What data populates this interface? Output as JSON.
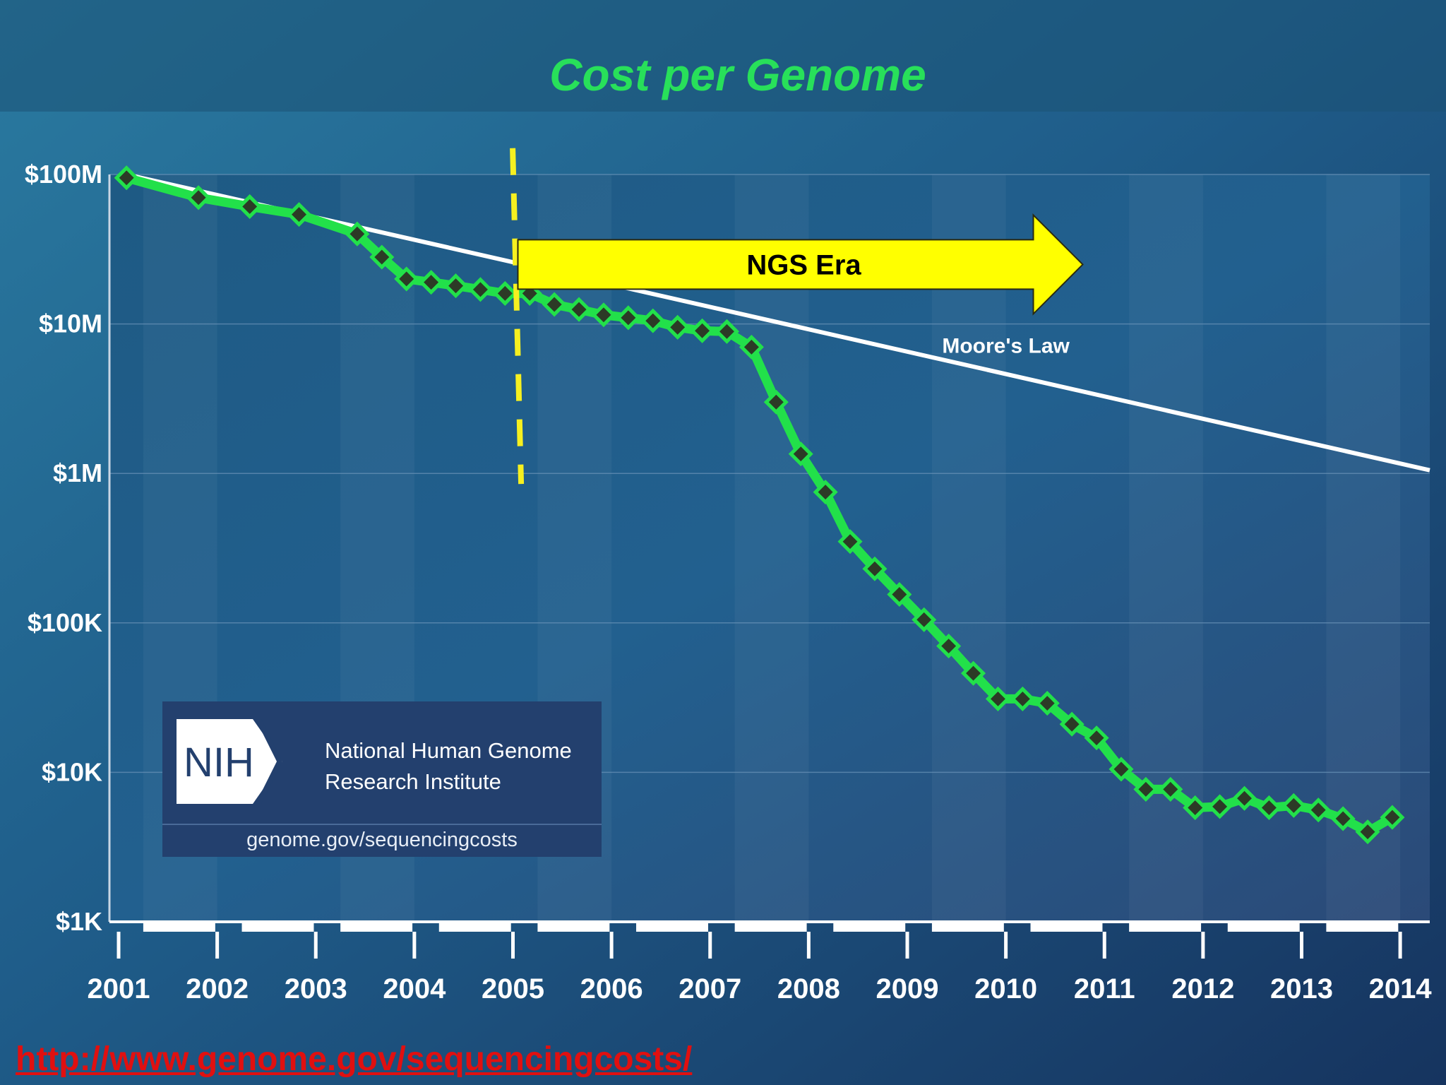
{
  "chart_data": {
    "type": "line",
    "title": "Cost per Genome",
    "y_scale": "log",
    "ylim": [
      1000,
      100000000
    ],
    "y_ticks": [
      {
        "value": 100000000,
        "label": "$100M"
      },
      {
        "value": 10000000,
        "label": "$10M"
      },
      {
        "value": 1000000,
        "label": "$1M"
      },
      {
        "value": 100000,
        "label": "$100K"
      },
      {
        "value": 10000,
        "label": "$10K"
      },
      {
        "value": 1000,
        "label": "$1K"
      }
    ],
    "xlim": [
      2001.0,
      2014.3
    ],
    "x_ticks": [
      2001,
      2002,
      2003,
      2004,
      2005,
      2006,
      2007,
      2008,
      2009,
      2010,
      2011,
      2012,
      2013,
      2014
    ],
    "grid": "horizontal",
    "series": [
      {
        "name": "",
        "color": "#22e04a",
        "marker": "diamond",
        "x": [
          2001.08,
          2001.81,
          2002.33,
          2002.83,
          2003.42,
          2003.67,
          2003.92,
          2004.17,
          2004.42,
          2004.67,
          2004.92,
          2005.17,
          2005.42,
          2005.67,
          2005.92,
          2006.17,
          2006.42,
          2006.67,
          2006.92,
          2007.17,
          2007.42,
          2007.67,
          2007.92,
          2008.17,
          2008.42,
          2008.67,
          2008.92,
          2009.17,
          2009.42,
          2009.67,
          2009.92,
          2010.17,
          2010.42,
          2010.67,
          2010.92,
          2011.17,
          2011.42,
          2011.67,
          2011.92,
          2012.17,
          2012.42,
          2012.67,
          2012.92,
          2013.17,
          2013.42,
          2013.67,
          2013.92
        ],
        "values": [
          95000000,
          70000000,
          61000000,
          54000000,
          40000000,
          28000000,
          20000000,
          19000000,
          18000000,
          17000000,
          16000000,
          16000000,
          13500000,
          12500000,
          11500000,
          11000000,
          10500000,
          9500000,
          9000000,
          8900000,
          7000000,
          3000000,
          1350000,
          750000,
          350000,
          230000,
          155000,
          105000,
          70000,
          46000,
          31000,
          31000,
          29000,
          21000,
          17000,
          10500,
          7700,
          7700,
          5800,
          5900,
          6700,
          5800,
          6000,
          5600,
          4900,
          4000,
          5000
        ]
      }
    ],
    "trend_line": {
      "label": "Moore's Law",
      "color": "#ffffff",
      "x": [
        2001.08,
        2014.3
      ],
      "values": [
        100000000,
        1050000
      ]
    },
    "annotations": [
      {
        "type": "vline",
        "x": 2005.04,
        "y_from": 150000000,
        "y_to": 850000,
        "color": "#f6f020",
        "dashed": true
      },
      {
        "type": "arrow",
        "label": "NGS Era",
        "x_from": 2005.05,
        "x_to": 2010.78,
        "y": 25000000,
        "color": "#ffff00"
      }
    ]
  },
  "nih_badge": {
    "logo_text": "NIH",
    "name_line1": "National Human Genome",
    "name_line2": "Research Institute",
    "url": "genome.gov/sequencingcosts"
  },
  "source_link": {
    "text": "http://www.genome.gov/sequencingcosts/"
  }
}
